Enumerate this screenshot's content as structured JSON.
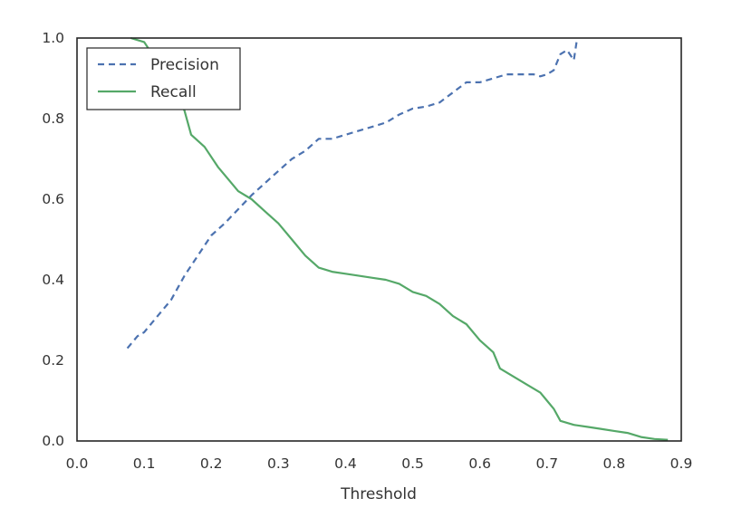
{
  "chart_data": {
    "type": "line",
    "title": "",
    "xlabel": "Threshold",
    "ylabel": "",
    "xlim": [
      0.0,
      0.9
    ],
    "ylim": [
      0.0,
      1.0
    ],
    "xticks": [
      "0.0",
      "0.1",
      "0.2",
      "0.3",
      "0.4",
      "0.5",
      "0.6",
      "0.7",
      "0.8",
      "0.9"
    ],
    "yticks": [
      "0.0",
      "0.2",
      "0.4",
      "0.6",
      "0.8",
      "1.0"
    ],
    "grid": false,
    "legend": "top-left",
    "series": [
      {
        "name": "Precision",
        "style": "dashed",
        "color": "#4C72B0",
        "x": [
          0.075,
          0.09,
          0.1,
          0.12,
          0.14,
          0.16,
          0.18,
          0.2,
          0.22,
          0.24,
          0.26,
          0.28,
          0.3,
          0.32,
          0.34,
          0.36,
          0.38,
          0.4,
          0.42,
          0.44,
          0.46,
          0.48,
          0.5,
          0.52,
          0.54,
          0.56,
          0.58,
          0.6,
          0.62,
          0.64,
          0.66,
          0.68,
          0.69,
          0.7,
          0.71,
          0.72,
          0.73,
          0.74,
          0.745
        ],
        "y": [
          0.23,
          0.26,
          0.27,
          0.31,
          0.35,
          0.41,
          0.46,
          0.51,
          0.54,
          0.575,
          0.61,
          0.64,
          0.67,
          0.7,
          0.72,
          0.75,
          0.75,
          0.76,
          0.77,
          0.78,
          0.79,
          0.81,
          0.825,
          0.83,
          0.84,
          0.865,
          0.89,
          0.89,
          0.9,
          0.91,
          0.91,
          0.91,
          0.905,
          0.91,
          0.92,
          0.96,
          0.97,
          0.945,
          1.0
        ]
      },
      {
        "name": "Recall",
        "style": "solid",
        "color": "#55A868",
        "x": [
          0.08,
          0.1,
          0.12,
          0.14,
          0.16,
          0.17,
          0.19,
          0.21,
          0.23,
          0.24,
          0.26,
          0.28,
          0.3,
          0.32,
          0.34,
          0.36,
          0.38,
          0.4,
          0.42,
          0.44,
          0.46,
          0.48,
          0.5,
          0.52,
          0.54,
          0.56,
          0.58,
          0.6,
          0.62,
          0.63,
          0.65,
          0.67,
          0.69,
          0.7,
          0.71,
          0.72,
          0.74,
          0.76,
          0.78,
          0.8,
          0.82,
          0.84,
          0.86,
          0.88
        ],
        "y": [
          1.0,
          0.99,
          0.94,
          0.89,
          0.82,
          0.76,
          0.73,
          0.68,
          0.64,
          0.62,
          0.6,
          0.57,
          0.54,
          0.5,
          0.46,
          0.43,
          0.42,
          0.415,
          0.41,
          0.405,
          0.4,
          0.39,
          0.37,
          0.36,
          0.34,
          0.31,
          0.29,
          0.25,
          0.22,
          0.18,
          0.16,
          0.14,
          0.12,
          0.1,
          0.08,
          0.05,
          0.04,
          0.035,
          0.03,
          0.025,
          0.02,
          0.01,
          0.005,
          0.003
        ]
      }
    ]
  }
}
